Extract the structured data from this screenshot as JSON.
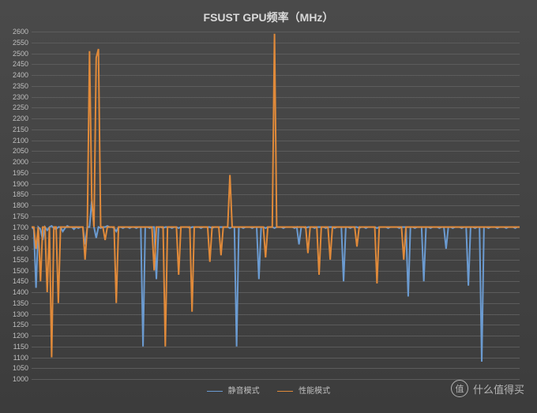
{
  "chart": {
    "type": "line",
    "title": "FSUST GPU频率（MHz）",
    "title_fontsize": 14,
    "title_color": "#d9d9d9",
    "background_gradient": [
      "#4a4a4a",
      "#3c3c3c"
    ],
    "grid_color": "#5c5c5c",
    "axis_label_color": "#bfbfbf",
    "axis_label_fontsize": 9,
    "ylim": [
      1000,
      2600
    ],
    "ytick_step": 50,
    "yticks": [
      1000,
      1050,
      1100,
      1150,
      1200,
      1250,
      1300,
      1350,
      1400,
      1450,
      1500,
      1550,
      1600,
      1650,
      1700,
      1750,
      1800,
      1850,
      1900,
      1950,
      2000,
      2050,
      2100,
      2150,
      2200,
      2250,
      2300,
      2350,
      2400,
      2450,
      2500,
      2550,
      2600
    ],
    "x_count": 220,
    "series": [
      {
        "name": "静音模式",
        "color": "#6b9bd1",
        "line_width": 1,
        "values": [
          1700,
          1690,
          1420,
          1700,
          1690,
          1640,
          1700,
          1685,
          1700,
          1705,
          1695,
          1690,
          1700,
          1700,
          1680,
          1695,
          1705,
          1700,
          1700,
          1690,
          1700,
          1695,
          1700,
          1700,
          1620,
          1700,
          1700,
          1820,
          1700,
          1650,
          1700,
          1695,
          1700,
          1700,
          1705,
          1700,
          1700,
          1695,
          1680,
          1700,
          1700,
          1695,
          1700,
          1700,
          1695,
          1700,
          1700,
          1695,
          1700,
          1700,
          1150,
          1700,
          1700,
          1695,
          1700,
          1700,
          1460,
          1700,
          1700,
          1695,
          1700,
          1700,
          1700,
          1695,
          1700,
          1700,
          1695,
          1700,
          1700,
          1700,
          1700,
          1695,
          1700,
          1700,
          1700,
          1700,
          1695,
          1700,
          1700,
          1700,
          1700,
          1695,
          1700,
          1700,
          1700,
          1700,
          1700,
          1700,
          1700,
          1695,
          1700,
          1700,
          1150,
          1700,
          1700,
          1695,
          1700,
          1700,
          1700,
          1695,
          1700,
          1700,
          1460,
          1700,
          1700,
          1695,
          1700,
          1700,
          1700,
          1695,
          1700,
          1700,
          1700,
          1695,
          1700,
          1700,
          1700,
          1700,
          1695,
          1700,
          1620,
          1700,
          1700,
          1695,
          1700,
          1700,
          1700,
          1695,
          1700,
          1700,
          1700,
          1700,
          1695,
          1700,
          1700,
          1700,
          1695,
          1700,
          1700,
          1700,
          1450,
          1700,
          1700,
          1695,
          1700,
          1700,
          1700,
          1695,
          1700,
          1700,
          1695,
          1700,
          1700,
          1700,
          1700,
          1695,
          1700,
          1700,
          1700,
          1700,
          1695,
          1700,
          1700,
          1700,
          1700,
          1695,
          1700,
          1700,
          1700,
          1380,
          1700,
          1700,
          1695,
          1700,
          1700,
          1700,
          1450,
          1700,
          1700,
          1695,
          1700,
          1700,
          1700,
          1695,
          1700,
          1700,
          1600,
          1700,
          1700,
          1695,
          1700,
          1700,
          1700,
          1695,
          1700,
          1700,
          1430,
          1700,
          1700,
          1695,
          1700,
          1700,
          1080,
          1700,
          1700,
          1695,
          1700,
          1700,
          1700,
          1695,
          1700,
          1700,
          1700,
          1695,
          1700,
          1700,
          1700,
          1695,
          1700,
          1700
        ]
      },
      {
        "name": "性能模式",
        "color": "#e08a3a",
        "line_width": 1,
        "values": [
          1700,
          1700,
          1600,
          1700,
          1450,
          1700,
          1700,
          1400,
          1700,
          1100,
          1700,
          1700,
          1350,
          1700,
          1700,
          1700,
          1700,
          1700,
          1700,
          1700,
          1700,
          1700,
          1700,
          1700,
          1550,
          1700,
          2510,
          1830,
          1700,
          2480,
          2520,
          1700,
          1700,
          1640,
          1700,
          1700,
          1700,
          1700,
          1350,
          1700,
          1700,
          1700,
          1700,
          1700,
          1700,
          1700,
          1700,
          1700,
          1700,
          1700,
          1700,
          1700,
          1700,
          1700,
          1700,
          1500,
          1700,
          1700,
          1700,
          1700,
          1150,
          1700,
          1700,
          1700,
          1700,
          1700,
          1480,
          1700,
          1700,
          1700,
          1700,
          1700,
          1310,
          1700,
          1700,
          1700,
          1700,
          1700,
          1700,
          1700,
          1540,
          1700,
          1700,
          1700,
          1700,
          1570,
          1700,
          1700,
          1700,
          1940,
          1700,
          1700,
          1700,
          1700,
          1700,
          1700,
          1700,
          1700,
          1700,
          1700,
          1700,
          1700,
          1700,
          1700,
          1700,
          1560,
          1700,
          1700,
          1700,
          2590,
          1700,
          1700,
          1700,
          1700,
          1700,
          1700,
          1700,
          1700,
          1700,
          1700,
          1700,
          1700,
          1700,
          1700,
          1580,
          1700,
          1700,
          1700,
          1700,
          1480,
          1700,
          1700,
          1700,
          1700,
          1550,
          1700,
          1700,
          1700,
          1700,
          1700,
          1700,
          1700,
          1700,
          1700,
          1700,
          1700,
          1610,
          1700,
          1700,
          1700,
          1700,
          1700,
          1700,
          1700,
          1700,
          1440,
          1700,
          1700,
          1700,
          1700,
          1700,
          1700,
          1700,
          1700,
          1700,
          1700,
          1700,
          1550,
          1700,
          1700,
          1700,
          1700,
          1700,
          1700,
          1700,
          1700,
          1700,
          1700,
          1700,
          1700,
          1700,
          1700,
          1700,
          1700,
          1700,
          1700,
          1700,
          1700,
          1700,
          1700,
          1700,
          1700,
          1700,
          1700,
          1700,
          1700,
          1700,
          1700,
          1700,
          1700,
          1700,
          1700,
          1700,
          1700,
          1700,
          1700,
          1700,
          1700,
          1700,
          1700,
          1700,
          1700,
          1700,
          1700,
          1700,
          1700,
          1700,
          1700,
          1700,
          1700
        ]
      }
    ],
    "legend": {
      "position": "bottom",
      "label_color": "#bfbfbf",
      "label_fontsize": 10
    }
  },
  "watermark": {
    "badge_text": "值",
    "text": "什么值得买",
    "color": "#c8c8c8"
  }
}
